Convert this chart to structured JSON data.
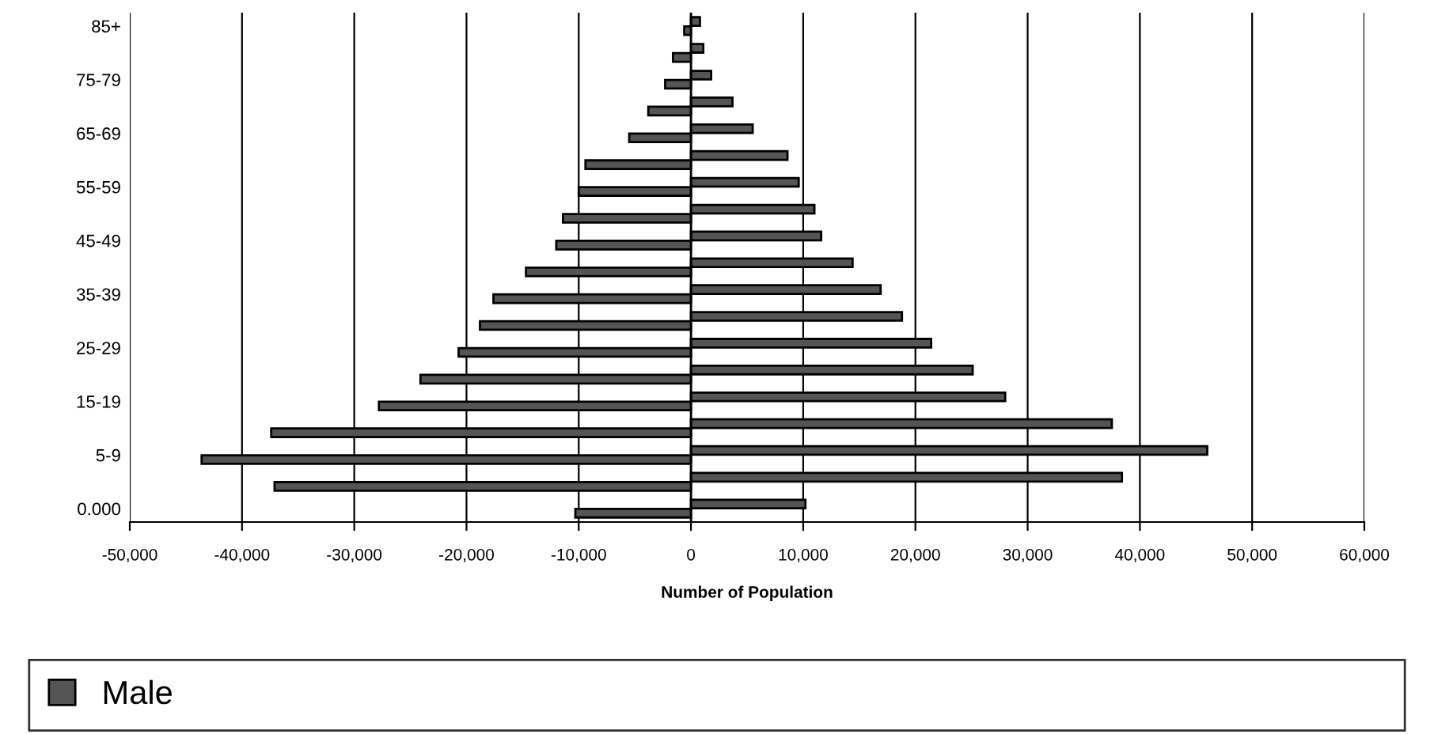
{
  "chart_data": {
    "type": "bar",
    "orientation": "horizontal",
    "xlabel": "Number of Population",
    "categories": [
      "85+",
      null,
      "75-79",
      null,
      "65-69",
      null,
      "55-59",
      null,
      "45-49",
      null,
      "35-39",
      null,
      "25-29",
      null,
      "15-19",
      null,
      "5-9",
      null,
      "0.000"
    ],
    "series": [
      {
        "name": "Male",
        "color": "#555555",
        "values": [
          800,
          1100,
          1800,
          3700,
          5500,
          8600,
          9600,
          11000,
          11600,
          14400,
          16900,
          18800,
          21400,
          25100,
          28000,
          37500,
          46000,
          38400,
          10200
        ]
      },
      {
        "color": "#555555",
        "values": [
          -600,
          -1600,
          -2300,
          -3800,
          -5500,
          -9400,
          -10000,
          -11400,
          -12000,
          -14700,
          -17600,
          -18800,
          -20700,
          -24100,
          -27800,
          -37400,
          -43600,
          -37100,
          -10300
        ]
      }
    ],
    "xlim": [
      -50000,
      60000
    ],
    "xticks": [
      {
        "value": -50000,
        "label": "-50,000"
      },
      {
        "value": -40000,
        "label": "-40,000"
      },
      {
        "value": -30000,
        "label": "-30,000"
      },
      {
        "value": -20000,
        "label": "-20,000"
      },
      {
        "value": -10000,
        "label": "-10,000"
      },
      0,
      {
        "value": 10000,
        "label": "10,000"
      },
      {
        "value": 20000,
        "label": "20,000"
      },
      {
        "value": 30000,
        "label": "30,000"
      },
      {
        "value": 40000,
        "label": "40,000"
      },
      {
        "value": 50000,
        "label": "50,000"
      },
      {
        "value": 60000,
        "label": "60,000"
      }
    ],
    "grid": "x",
    "legend": "bottom"
  }
}
